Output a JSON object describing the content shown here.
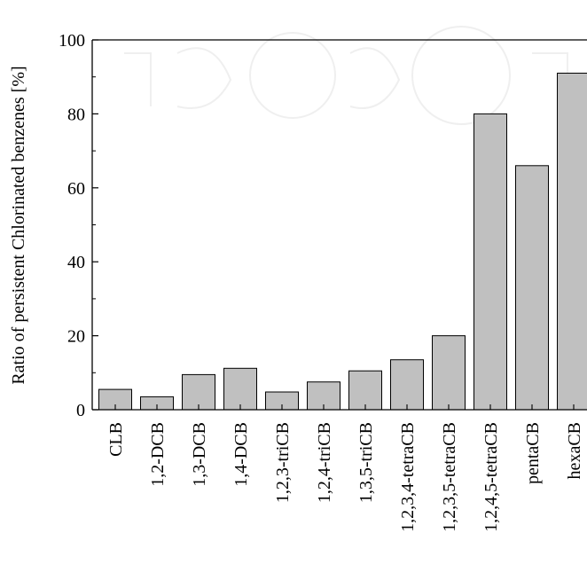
{
  "chart_data": {
    "type": "bar",
    "categories": [
      "CLB",
      "1,2-DCB",
      "1,3-DCB",
      "1,4-DCB",
      "1,2,3-triCB",
      "1,2,4-triCB",
      "1,3,5-triCB",
      "1,2,3,4-tetraCB",
      "1,2,3,5-tetraCB",
      "1,2,4,5-tetraCB",
      "pentaCB",
      "hexaCB"
    ],
    "values": [
      5.5,
      3.5,
      9.5,
      11.2,
      4.8,
      7.5,
      10.5,
      13.5,
      20,
      80,
      66,
      91
    ],
    "ylabel": "Ratio of persistent Chlorinated benzenes [%]",
    "xlabel": "",
    "ylim": [
      0,
      100
    ],
    "yticks": [
      0,
      20,
      40,
      60,
      80,
      100
    ],
    "bar_color": "#c0c0c0",
    "grid": false
  }
}
